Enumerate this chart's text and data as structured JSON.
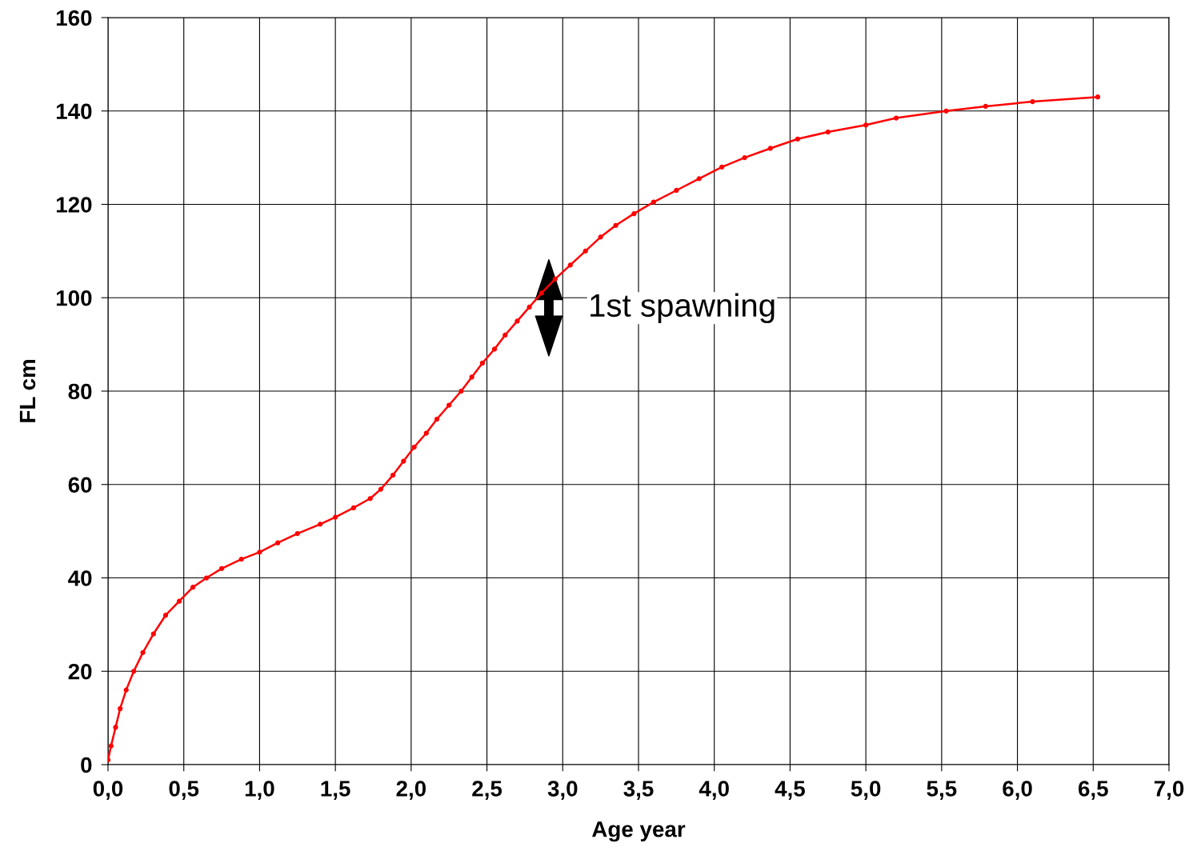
{
  "chart_data": {
    "type": "line",
    "xlabel": "Age year",
    "ylabel": "FL cm",
    "x": [
      0.0,
      0.02,
      0.05,
      0.08,
      0.12,
      0.17,
      0.23,
      0.3,
      0.38,
      0.47,
      0.56,
      0.65,
      0.75,
      0.88,
      1.0,
      1.12,
      1.25,
      1.4,
      1.5,
      1.62,
      1.73,
      1.8,
      1.88,
      1.95,
      2.02,
      2.1,
      2.17,
      2.25,
      2.33,
      2.4,
      2.47,
      2.55,
      2.62,
      2.7,
      2.78,
      2.86,
      2.95,
      3.05,
      3.15,
      3.25,
      3.35,
      3.47,
      3.6,
      3.75,
      3.9,
      4.05,
      4.2,
      4.37,
      4.55,
      4.75,
      5.0,
      5.2,
      5.53,
      5.79,
      6.1,
      6.53
    ],
    "series": [
      {
        "color": "#ff0000",
        "values": [
          1,
          4,
          8,
          12,
          16,
          20,
          24,
          28,
          32,
          35,
          38,
          40,
          42,
          44,
          45.5,
          47.5,
          49.5,
          51.5,
          53,
          55,
          57,
          59,
          62,
          65,
          68,
          71,
          74,
          77,
          80,
          83,
          86,
          89,
          92,
          95,
          98,
          101,
          104,
          107,
          110,
          113,
          115.5,
          118,
          120.5,
          123,
          125.5,
          128,
          130,
          132,
          134,
          135.5,
          137,
          138.5,
          140,
          141,
          142,
          143
        ]
      }
    ],
    "xlim": [
      0,
      7
    ],
    "ylim": [
      0,
      160
    ],
    "xticks": [
      {
        "value": 0,
        "label": "0,0"
      },
      {
        "value": 0.5,
        "label": "0,5"
      },
      {
        "value": 1,
        "label": "1,0"
      },
      {
        "value": 1.5,
        "label": "1,5"
      },
      {
        "value": 2,
        "label": "2,0"
      },
      {
        "value": 2.5,
        "label": "2,5"
      },
      {
        "value": 3,
        "label": "3,0"
      },
      {
        "value": 3.5,
        "label": "3,5"
      },
      {
        "value": 4,
        "label": "4,0"
      },
      {
        "value": 4.5,
        "label": "4,5"
      },
      {
        "value": 5,
        "label": "5,0"
      },
      {
        "value": 5.5,
        "label": "5,5"
      },
      {
        "value": 6,
        "label": "6,0"
      },
      {
        "value": 6.5,
        "label": "6,5"
      },
      {
        "value": 7,
        "label": "7,0"
      }
    ],
    "yticks": [
      0,
      20,
      40,
      60,
      80,
      100,
      120,
      140,
      160
    ],
    "annotations": [
      "1st spawning"
    ],
    "grid": true,
    "legend": false,
    "marker": "circle",
    "line_style": "solid"
  }
}
